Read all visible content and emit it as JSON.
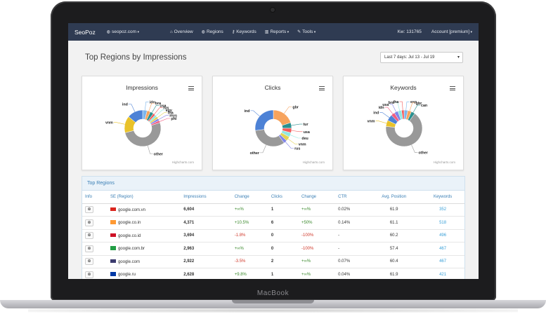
{
  "device": {
    "brand_label": "MacBook"
  },
  "navbar": {
    "brand": "SeoPoz",
    "site": "seopoz.com",
    "items": [
      "Overview",
      "Regions",
      "Keywords",
      "Reports",
      "Tools"
    ],
    "kw_count": "Kw: 131765",
    "account": "Account [premium]"
  },
  "page": {
    "title": "Top Regions by Impressions",
    "date_range": "Last 7 days: Jul 13 - Jul 19"
  },
  "chart_data": [
    {
      "type": "pie",
      "title": "Impressions",
      "credit": "Highcharts.com",
      "categories": [
        "idn",
        "bra",
        "usa",
        "rus",
        "egy",
        "tha",
        "mys",
        "phl",
        "other",
        "vnm",
        "ind"
      ],
      "colors": [
        "#7cb5ec",
        "#f7a35c",
        "#2b908f",
        "#f45b5b",
        "#91e8e1",
        "#e4d354",
        "#8085e9",
        "#f15c80",
        "#999999",
        "#e9c229",
        "#4d82d6"
      ],
      "values": [
        4,
        3,
        3,
        2,
        2,
        2,
        2,
        2,
        51,
        15,
        14
      ]
    },
    {
      "type": "pie",
      "title": "Clicks",
      "credit": "Highcharts.com",
      "categories": [
        "gbr",
        "tur",
        "usa",
        "deu",
        "vnm",
        "rus",
        "other",
        "ind"
      ],
      "colors": [
        "#f7a35c",
        "#2b908f",
        "#f45b5b",
        "#91e8e1",
        "#e4d354",
        "#8085e9",
        "#999999",
        "#4d82d6"
      ],
      "values": [
        20,
        5,
        4,
        4,
        4,
        3,
        33,
        27
      ]
    },
    {
      "type": "pie",
      "title": "Keywords",
      "credit": "Highcharts.com",
      "categories": [
        "esp",
        "gbr",
        "can",
        "other",
        "vnm",
        "ind",
        "idn",
        "usa",
        "bra",
        "tha"
      ],
      "colors": [
        "#7cb5ec",
        "#f7a35c",
        "#2b908f",
        "#999999",
        "#e9c229",
        "#4d82d6",
        "#f15c80",
        "#8085e9",
        "#91e8e1",
        "#f45b5b"
      ],
      "values": [
        3,
        3,
        3,
        60,
        5,
        5,
        3,
        3,
        3,
        2
      ]
    }
  ],
  "table": {
    "title": "Top Regions",
    "headers": [
      "Info",
      "SE (Region)",
      "Impressions",
      "Change",
      "Clicks",
      "Change",
      "CTR",
      "Avg. Position",
      "Keywords"
    ],
    "rows": [
      {
        "flag": "vn",
        "flag_color": "#da251d",
        "se": "google.com.vn",
        "impressions": "6,604",
        "change": "+∞%",
        "change_type": "pos",
        "clicks": "1",
        "click_change": "+∞%",
        "click_change_type": "pos",
        "ctr": "0.02%",
        "avg_position": "61.9",
        "keywords": "352"
      },
      {
        "flag": "in",
        "flag_color": "#ff9933",
        "se": "google.co.in",
        "impressions": "4,371",
        "change": "+10.5%",
        "change_type": "pos",
        "clicks": "6",
        "click_change": "+50%",
        "click_change_type": "pos",
        "ctr": "0.14%",
        "avg_position": "61.1",
        "keywords": "518"
      },
      {
        "flag": "id",
        "flag_color": "#ce1126",
        "se": "google.co.id",
        "impressions": "3,694",
        "change": "-1.8%",
        "change_type": "neg",
        "clicks": "0",
        "click_change": "-100%",
        "click_change_type": "neg",
        "ctr": "-",
        "avg_position": "60.2",
        "keywords": "496"
      },
      {
        "flag": "br",
        "flag_color": "#229e45",
        "se": "google.com.br",
        "impressions": "2,963",
        "change": "+∞%",
        "change_type": "pos",
        "clicks": "0",
        "click_change": "-100%",
        "click_change_type": "neg",
        "ctr": "-",
        "avg_position": "57.4",
        "keywords": "467"
      },
      {
        "flag": "us",
        "flag_color": "#3c3b6e",
        "se": "google.com",
        "impressions": "2,922",
        "change": "-3.5%",
        "change_type": "neg",
        "clicks": "2",
        "click_change": "+∞%",
        "click_change_type": "pos",
        "ctr": "0.07%",
        "avg_position": "60.4",
        "keywords": "467"
      },
      {
        "flag": "ru",
        "flag_color": "#0039a6",
        "se": "google.ru",
        "impressions": "2,628",
        "change": "+9.8%",
        "change_type": "pos",
        "clicks": "1",
        "click_change": "+∞%",
        "click_change_type": "pos",
        "ctr": "0.04%",
        "avg_position": "61.9",
        "keywords": "421"
      }
    ]
  }
}
